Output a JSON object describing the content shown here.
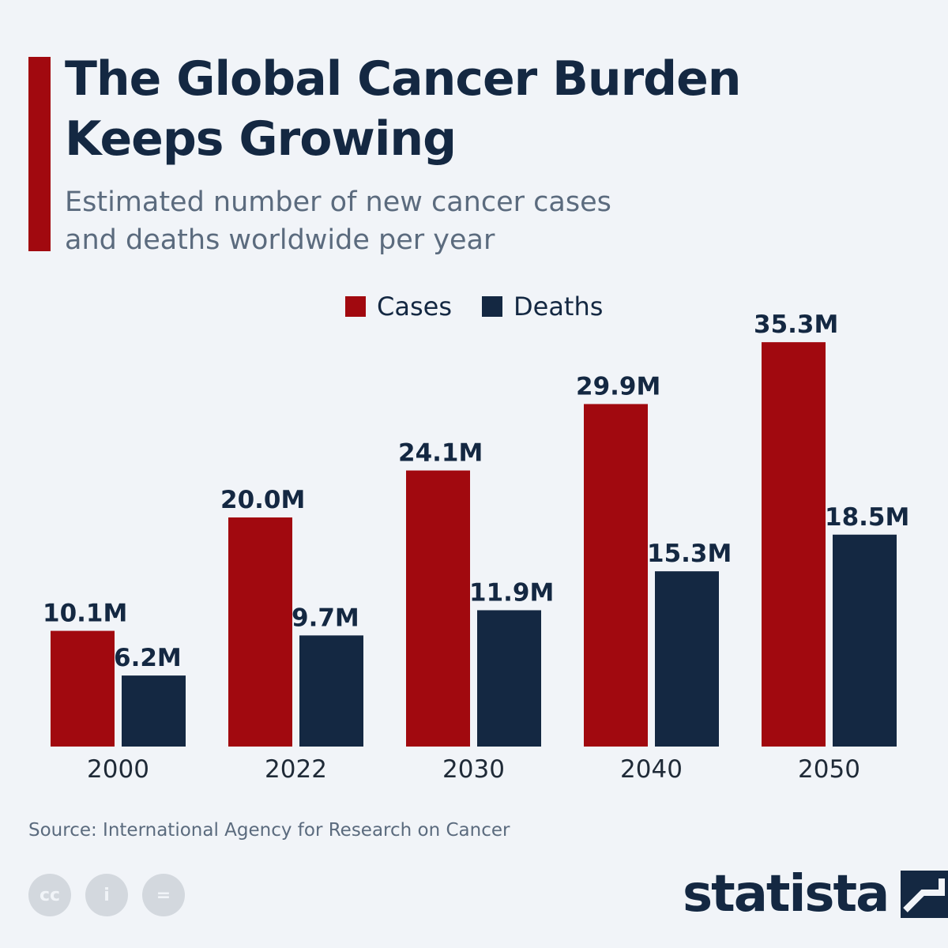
{
  "header": {
    "title_line1": "The Global Cancer Burden",
    "title_line2": "Keeps Growing",
    "subtitle_line1": "Estimated number of new cancer cases",
    "subtitle_line2": "and deaths worldwide per year"
  },
  "colors": {
    "cases": "#a1090f",
    "deaths": "#142842",
    "accent": "#a1090f",
    "background": "#f1f4f8"
  },
  "chart_data": {
    "type": "bar",
    "title": "The Global Cancer Burden Keeps Growing",
    "subtitle": "Estimated number of new cancer cases and deaths worldwide per year",
    "categories": [
      "2000",
      "2022",
      "2030",
      "2040",
      "2050"
    ],
    "series": [
      {
        "name": "Cases",
        "values": [
          10.1,
          20.0,
          24.1,
          29.9,
          35.3
        ],
        "labels": [
          "10.1M",
          "20.0M",
          "24.1M",
          "29.9M",
          "35.3M"
        ]
      },
      {
        "name": "Deaths",
        "values": [
          6.2,
          9.7,
          11.9,
          15.3,
          18.5
        ],
        "labels": [
          "6.2M",
          "9.7M",
          "11.9M",
          "15.3M",
          "18.5M"
        ]
      }
    ],
    "unit": "millions",
    "xlabel": "",
    "ylabel": "",
    "ylim": [
      0,
      40
    ],
    "grid": false,
    "legend": "top-center"
  },
  "footer": {
    "source": "Source: International Agency for Research on Cancer",
    "brand": "statista",
    "license_icons": [
      "cc-icon",
      "attribution-icon",
      "no-derivatives-icon"
    ],
    "license_glyphs": [
      "cc",
      "i",
      "="
    ]
  }
}
